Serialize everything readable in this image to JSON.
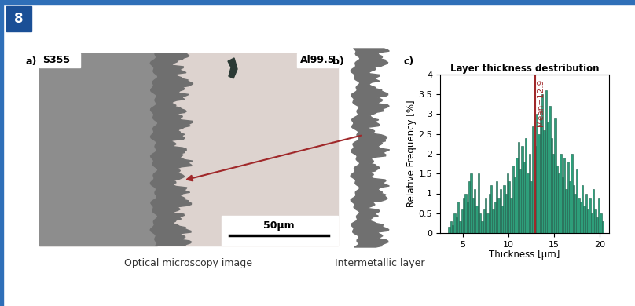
{
  "header": {
    "figure_number": "8"
  },
  "panel_a": {
    "label": "a)",
    "left_material": "S355",
    "right_material": "Al99.5",
    "scale_bar": "50µm",
    "caption": "Optical microscopy image"
  },
  "panel_b": {
    "label": "b)",
    "caption": "Intermetallic layer"
  },
  "chart_data": {
    "type": "histogram",
    "label": "c)",
    "title": "Layer thickness destribution",
    "x_label": "Thickness [μm]",
    "y_label": "Relative Frequency [%]",
    "bins": [
      3.4,
      3.6,
      3.8,
      4.0,
      4.2,
      4.4,
      4.6,
      4.8,
      5.0,
      5.2,
      5.4,
      5.6,
      5.8,
      6.0,
      6.2,
      6.4,
      6.6,
      6.8,
      7.0,
      7.2,
      7.4,
      7.6,
      7.8,
      8.0,
      8.2,
      8.4,
      8.6,
      8.8,
      9.0,
      9.2,
      9.4,
      9.6,
      9.8,
      10.0,
      10.2,
      10.4,
      10.6,
      10.8,
      11.0,
      11.2,
      11.4,
      11.6,
      11.8,
      12.0,
      12.2,
      12.4,
      12.6,
      12.8,
      13.0,
      13.2,
      13.4,
      13.6,
      13.8,
      14.0,
      14.2,
      14.4,
      14.6,
      14.8,
      15.0,
      15.2,
      15.4,
      15.6,
      15.8,
      16.0,
      16.2,
      16.4,
      16.6,
      16.8,
      17.0,
      17.2,
      17.4,
      17.6,
      17.8,
      18.0,
      18.2,
      18.4,
      18.6,
      18.8,
      19.0,
      19.2,
      19.4,
      19.6,
      19.8,
      20.0,
      20.2,
      20.4
    ],
    "values": [
      0.15,
      0.3,
      0.2,
      0.5,
      0.4,
      0.8,
      0.3,
      0.6,
      0.9,
      1.0,
      0.8,
      1.3,
      1.5,
      0.9,
      1.1,
      0.7,
      1.5,
      0.5,
      0.3,
      0.6,
      0.9,
      0.5,
      1.0,
      1.2,
      0.6,
      0.8,
      1.3,
      0.9,
      1.1,
      0.7,
      1.2,
      1.0,
      1.5,
      1.3,
      0.9,
      1.7,
      1.4,
      1.9,
      2.3,
      1.6,
      2.2,
      1.8,
      2.4,
      1.5,
      2.0,
      1.3,
      2.7,
      2.2,
      3.0,
      2.5,
      2.9,
      3.5,
      2.6,
      3.6,
      2.8,
      3.2,
      2.4,
      2.0,
      2.9,
      1.7,
      1.5,
      2.0,
      1.4,
      1.9,
      1.1,
      1.8,
      1.3,
      2.0,
      1.2,
      1.0,
      1.6,
      0.9,
      0.8,
      1.2,
      0.7,
      1.0,
      0.6,
      0.9,
      0.5,
      1.1,
      0.6,
      0.4,
      0.9,
      0.5,
      0.3
    ],
    "color": "#2e9e7a",
    "mean": 12.9,
    "mean_label": "Mean=12.9",
    "mean_color": "#a0282a",
    "xlim": [
      2.5,
      21
    ],
    "xticks": [
      5,
      10,
      15,
      20
    ],
    "ylim": [
      0,
      4
    ],
    "yticks": [
      0,
      0.5,
      1,
      1.5,
      2,
      2.5,
      3,
      3.5,
      4
    ],
    "grid": false
  }
}
